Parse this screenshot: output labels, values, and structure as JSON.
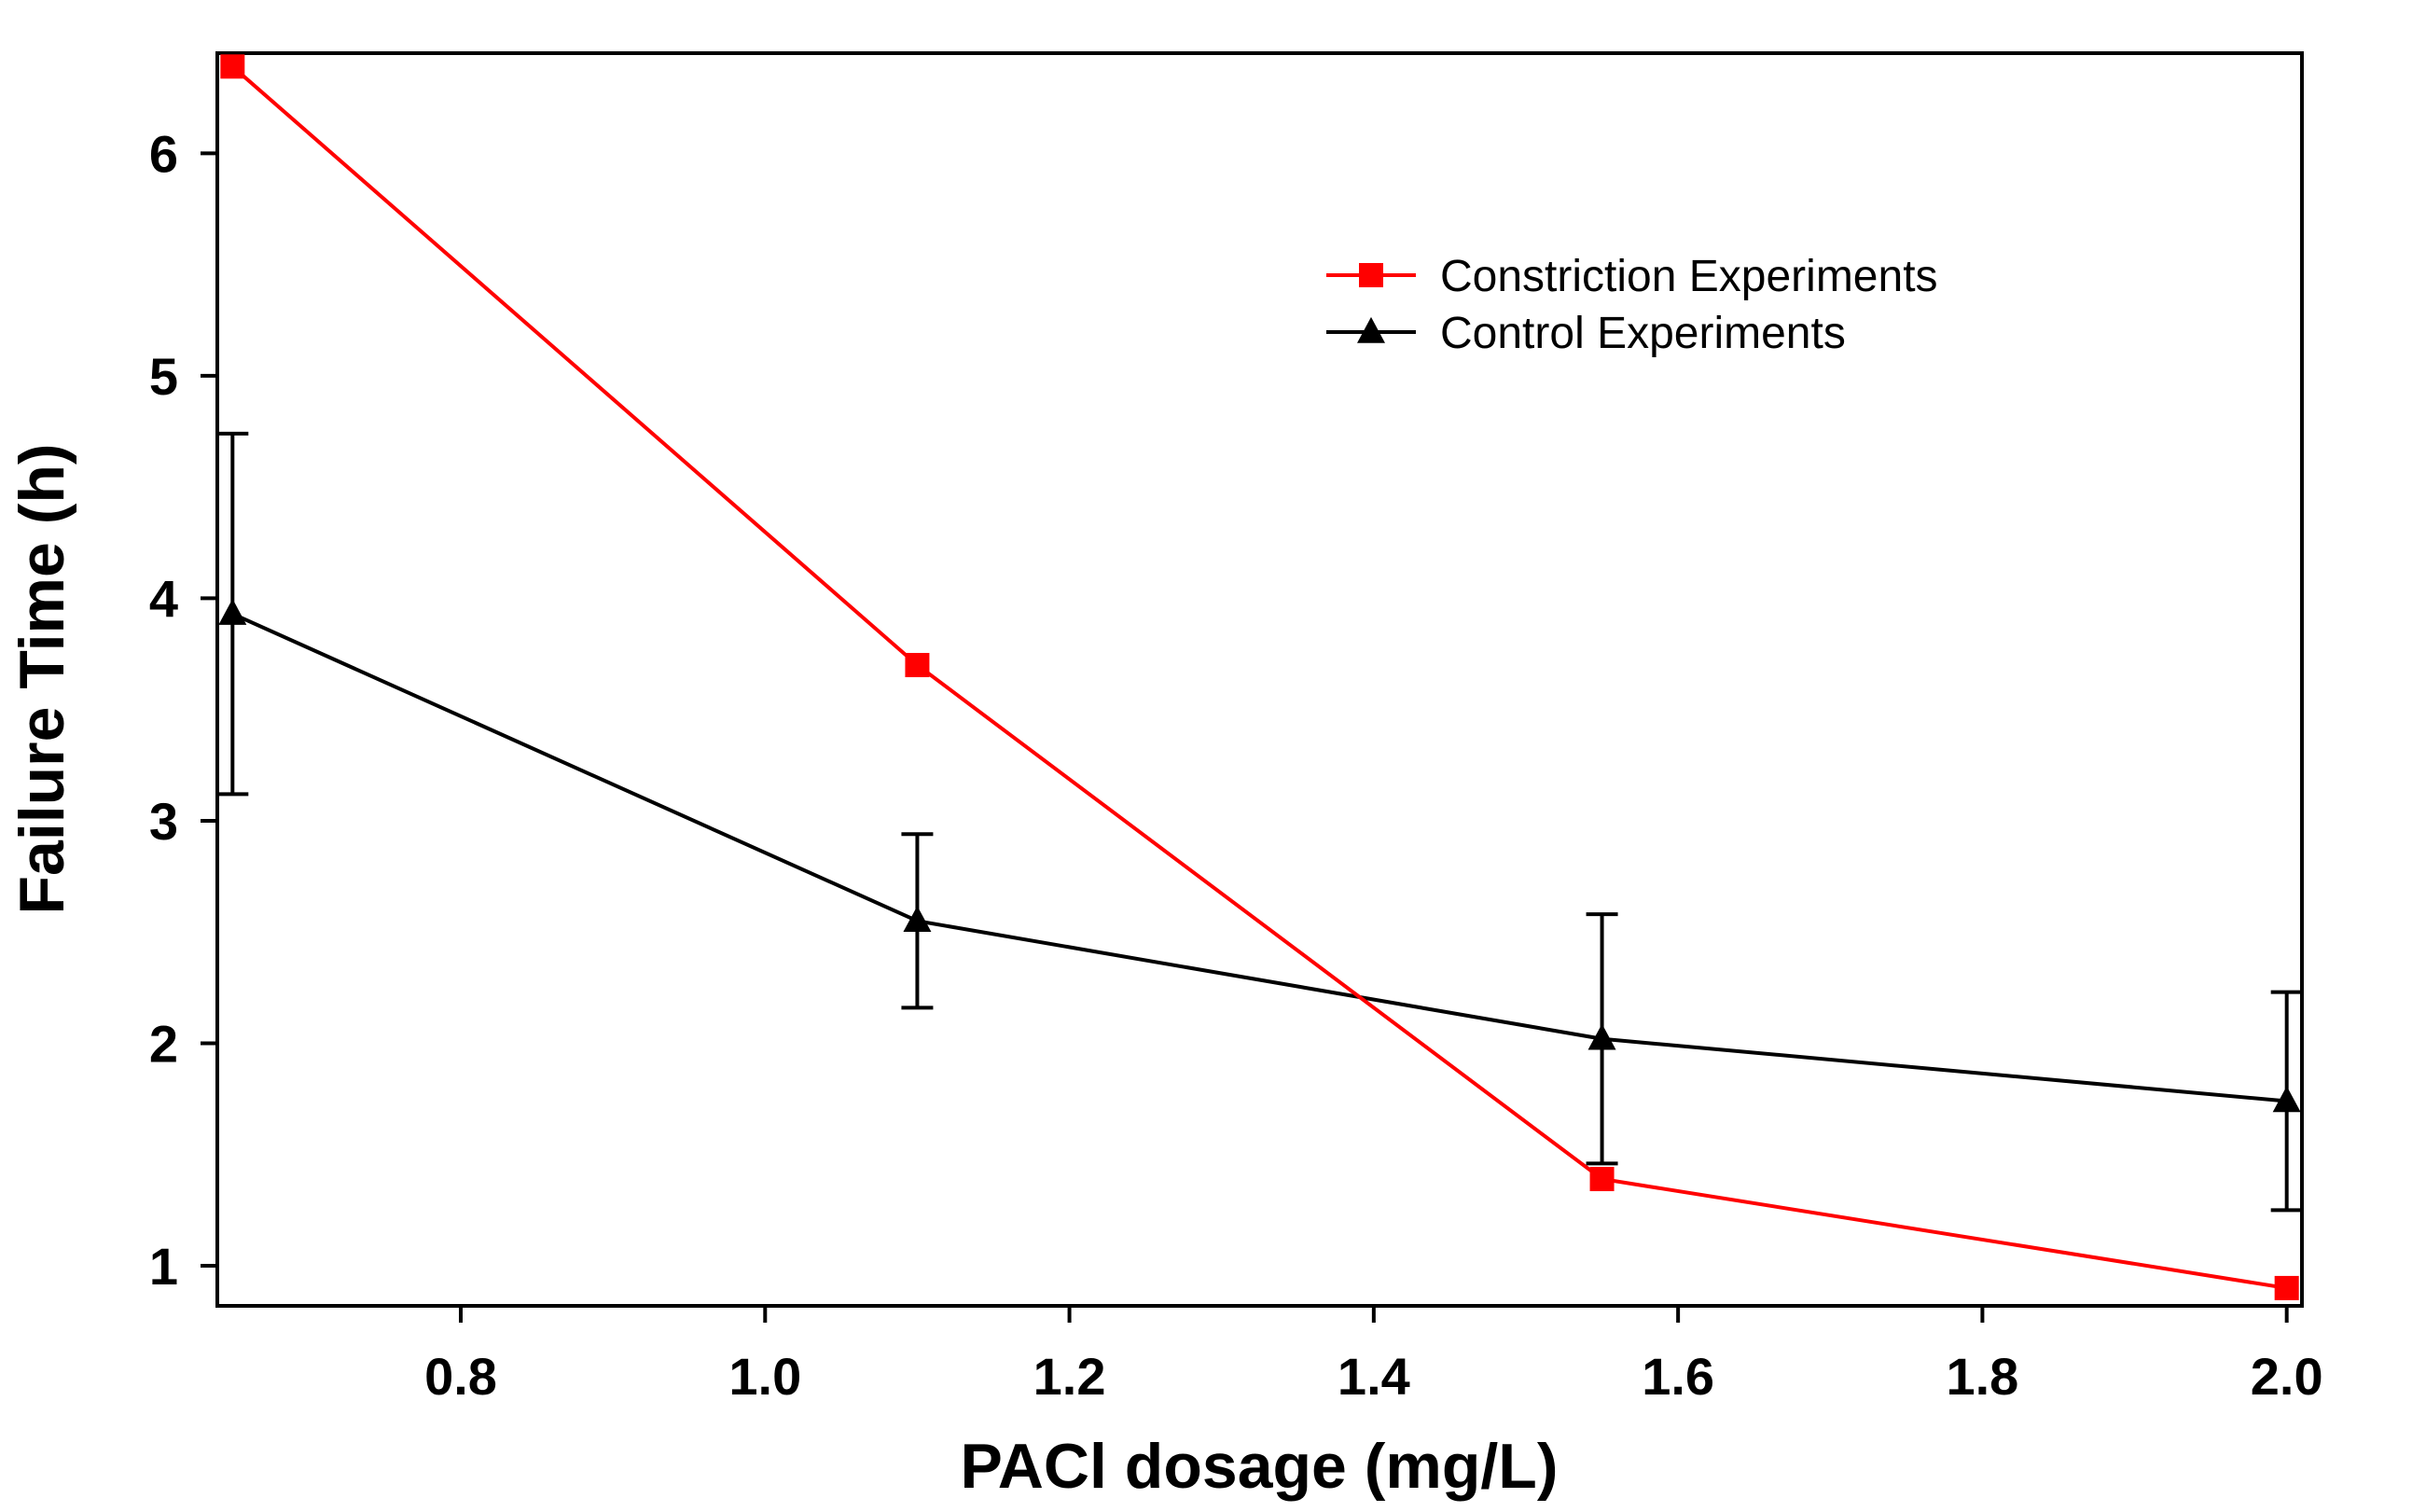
{
  "chart_data": {
    "type": "line",
    "title": "",
    "xlabel": "PACl dosage (mg/L)",
    "ylabel": "Failure Time (h)",
    "xlim": [
      0.64,
      2.01
    ],
    "ylim": [
      0.82,
      6.45
    ],
    "xticks": [
      "0.8",
      "1.0",
      "1.2",
      "1.4",
      "1.6",
      "1.8",
      "2.0"
    ],
    "yticks": [
      "1",
      "2",
      "3",
      "4",
      "5",
      "6"
    ],
    "grid": false,
    "legend_position": "top-right",
    "series": [
      {
        "name": "Constriction Experiments",
        "color": "#ff0000",
        "marker": "square",
        "x": [
          0.65,
          1.1,
          1.55,
          2.0
        ],
        "y": [
          6.39,
          3.7,
          1.39,
          0.9
        ]
      },
      {
        "name": "Control Experiments",
        "color": "#000000",
        "marker": "triangle",
        "x": [
          0.65,
          1.1,
          1.55,
          2.0
        ],
        "y": [
          3.93,
          2.55,
          2.02,
          1.74
        ],
        "error": [
          0.81,
          0.39,
          0.56,
          0.49
        ]
      }
    ]
  }
}
